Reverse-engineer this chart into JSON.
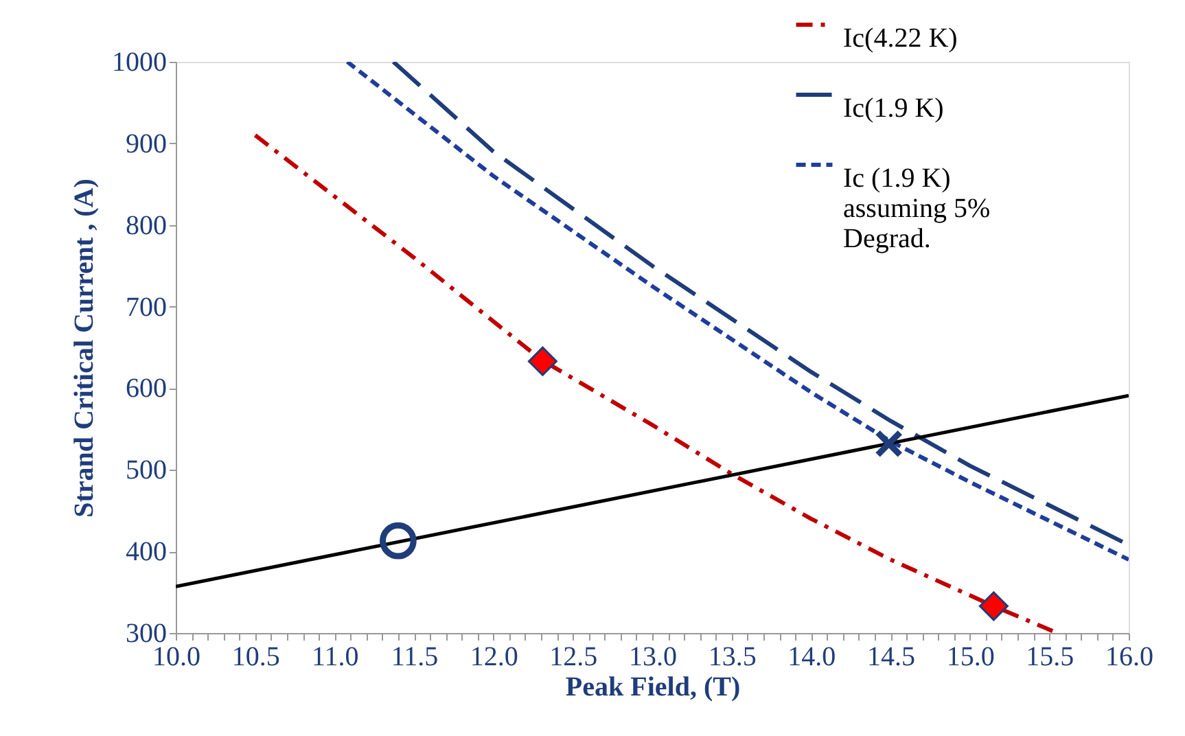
{
  "chart_data": {
    "type": "line",
    "xlabel": "Peak Field, (T)",
    "ylabel": "Strand Critical Current , (A)",
    "xlim": [
      10,
      16
    ],
    "ylim": [
      300,
      1000
    ],
    "xticks": [
      {
        "value": 10,
        "label": "10.0"
      },
      {
        "value": 10.5,
        "label": "10.5"
      },
      {
        "value": 11,
        "label": "11.0"
      },
      {
        "value": 11.5,
        "label": "11.5"
      },
      {
        "value": 12,
        "label": "12.0"
      },
      {
        "value": 12.5,
        "label": "12.5"
      },
      {
        "value": 13,
        "label": "13.0"
      },
      {
        "value": 13.5,
        "label": "13.5"
      },
      {
        "value": 14,
        "label": "14.0"
      },
      {
        "value": 14.5,
        "label": "14.5"
      },
      {
        "value": 15,
        "label": "15.0"
      },
      {
        "value": 15.5,
        "label": "15.5"
      },
      {
        "value": 16,
        "label": "16.0"
      },
      {
        "value": 10.1,
        "label": null
      },
      {
        "value": 10.2,
        "label": null
      },
      {
        "value": 10.3,
        "label": null
      },
      {
        "value": 10.4,
        "label": null
      },
      {
        "value": 10.6,
        "label": null
      },
      {
        "value": 10.7,
        "label": null
      },
      {
        "value": 10.8,
        "label": null
      },
      {
        "value": 10.9,
        "label": null
      },
      {
        "value": 11.1,
        "label": null
      },
      {
        "value": 11.2,
        "label": null
      },
      {
        "value": 11.3,
        "label": null
      },
      {
        "value": 11.4,
        "label": null
      },
      {
        "value": 11.6,
        "label": null
      },
      {
        "value": 11.7,
        "label": null
      },
      {
        "value": 11.8,
        "label": null
      },
      {
        "value": 11.9,
        "label": null
      },
      {
        "value": 12.1,
        "label": null
      },
      {
        "value": 12.2,
        "label": null
      },
      {
        "value": 12.3,
        "label": null
      },
      {
        "value": 12.4,
        "label": null
      },
      {
        "value": 12.6,
        "label": null
      },
      {
        "value": 12.7,
        "label": null
      },
      {
        "value": 12.8,
        "label": null
      },
      {
        "value": 12.9,
        "label": null
      },
      {
        "value": 13.1,
        "label": null
      },
      {
        "value": 13.2,
        "label": null
      },
      {
        "value": 13.3,
        "label": null
      },
      {
        "value": 13.4,
        "label": null
      },
      {
        "value": 13.6,
        "label": null
      },
      {
        "value": 13.7,
        "label": null
      },
      {
        "value": 13.8,
        "label": null
      },
      {
        "value": 13.9,
        "label": null
      },
      {
        "value": 14.1,
        "label": null
      },
      {
        "value": 14.2,
        "label": null
      },
      {
        "value": 14.3,
        "label": null
      },
      {
        "value": 14.4,
        "label": null
      },
      {
        "value": 14.6,
        "label": null
      },
      {
        "value": 14.7,
        "label": null
      },
      {
        "value": 14.8,
        "label": null
      },
      {
        "value": 14.9,
        "label": null
      },
      {
        "value": 15.1,
        "label": null
      },
      {
        "value": 15.2,
        "label": null
      },
      {
        "value": 15.3,
        "label": null
      },
      {
        "value": 15.4,
        "label": null
      },
      {
        "value": 15.6,
        "label": null
      },
      {
        "value": 15.7,
        "label": null
      },
      {
        "value": 15.8,
        "label": null
      },
      {
        "value": 15.9,
        "label": null
      }
    ],
    "yticks": [
      300,
      400,
      500,
      600,
      700,
      800,
      900,
      1000
    ],
    "grid": false,
    "legend": "top right",
    "series": [
      {
        "name": "Ic(4.22 K)",
        "line_style": "dashdot",
        "color": "#c00000",
        "x": [
          10.5,
          11.5,
          12.3,
          13,
          13.5,
          14,
          14.5,
          15.15,
          15.55
        ],
        "values": [
          910,
          760,
          635,
          555,
          495,
          440,
          390,
          333,
          300
        ]
      },
      {
        "name": "Ic(1.9 K)",
        "line_style": "dashed",
        "color": "#1f3d7a",
        "x": [
          11.37,
          12,
          13,
          14,
          14.5,
          15,
          16
        ],
        "values": [
          1000,
          890,
          750,
          620,
          560,
          505,
          408
        ]
      },
      {
        "name": "Ic (1.9 K)\nassuming 5%\nDegrad.",
        "line_style": "dotted",
        "color": "#1f3d9a",
        "x": [
          11.08,
          12,
          13,
          14,
          14.5,
          15,
          16
        ],
        "values": [
          1000,
          860,
          725,
          595,
          535,
          485,
          390
        ]
      },
      {
        "line_style": "solid",
        "color": "#000000",
        "x": [
          10,
          16
        ],
        "values": [
          357,
          591
        ]
      },
      {
        "type": "scatter",
        "marker": "diamond",
        "color": "#ff0000",
        "x": [
          12.31,
          15.15
        ],
        "values": [
          633,
          333
        ]
      },
      {
        "type": "scatter",
        "marker": "circle",
        "color": "#1f3d7a",
        "x": [
          11.4
        ],
        "values": [
          413
        ]
      },
      {
        "type": "scatter",
        "marker": "cross",
        "color": "#1f3d7a",
        "x": [
          14.49
        ],
        "values": [
          532
        ]
      }
    ]
  }
}
